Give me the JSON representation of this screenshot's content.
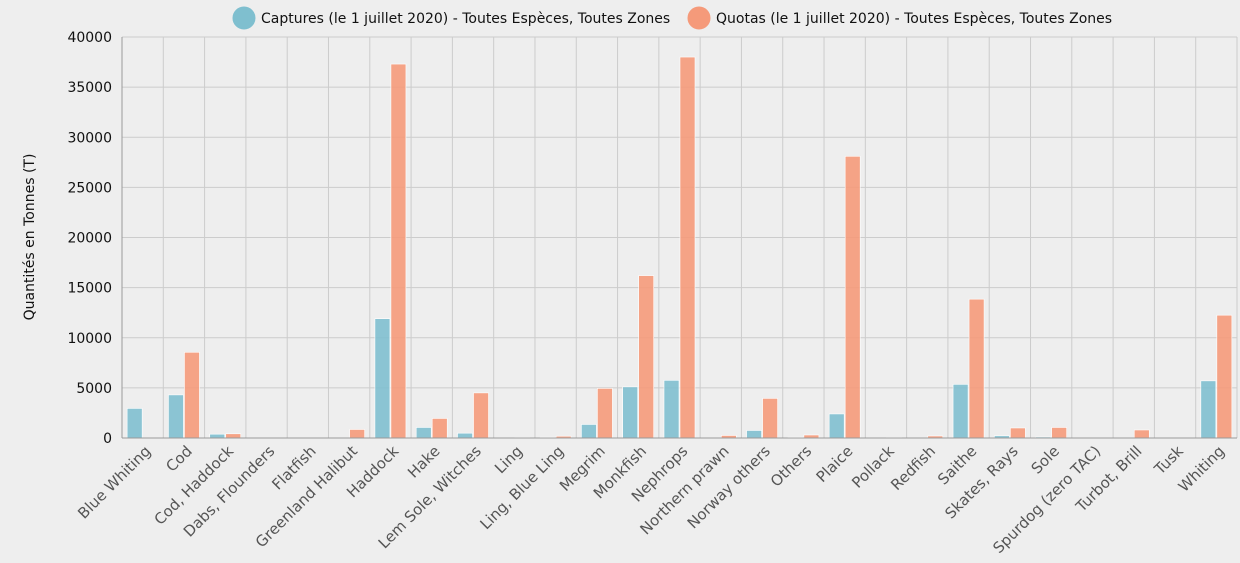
{
  "chart_data": {
    "type": "bar",
    "ylabel": "Quantités en Tonnes (T)",
    "xlabel": "",
    "ylim": [
      0,
      40000
    ],
    "yticks": [
      0,
      5000,
      10000,
      15000,
      20000,
      25000,
      30000,
      35000,
      40000
    ],
    "grid": true,
    "legend_position": "top",
    "categories": [
      "Blue Whiting",
      "Cod",
      "Cod, Haddock",
      "Dabs, Flounders",
      "Flatfish",
      "Greenland Halibut",
      "Haddock",
      "Hake",
      "Lem Sole, Witches",
      "Ling",
      "Ling, Blue Ling",
      "Megrim",
      "Monkfish",
      "Nephrops",
      "Northern prawn",
      "Norway others",
      "Others",
      "Plaice",
      "Pollack",
      "Redfish",
      "Saithe",
      "Skates, Rays",
      "Sole",
      "Spurdog (zero TAC)",
      "Turbot, Brill",
      "Tusk",
      "Whiting"
    ],
    "series": [
      {
        "name": "Captures (le 1 juillet 2020) - Toutes Espèces, Toutes Zones",
        "color": "#7fbfcf",
        "values": [
          2950,
          4300,
          380,
          0,
          0,
          0,
          11900,
          1050,
          480,
          0,
          80,
          1350,
          5100,
          5750,
          0,
          750,
          80,
          2400,
          0,
          0,
          5350,
          220,
          100,
          0,
          0,
          0,
          5700
        ]
      },
      {
        "name": "Quotas (le 1 juillet 2020) - Toutes Espèces, Toutes Zones",
        "color": "#f59a7a",
        "values": [
          0,
          8550,
          420,
          0,
          0,
          850,
          37300,
          1950,
          4500,
          50,
          180,
          4950,
          16200,
          38000,
          250,
          3950,
          300,
          28100,
          50,
          200,
          13850,
          1000,
          1050,
          0,
          800,
          0,
          12250
        ]
      }
    ]
  }
}
